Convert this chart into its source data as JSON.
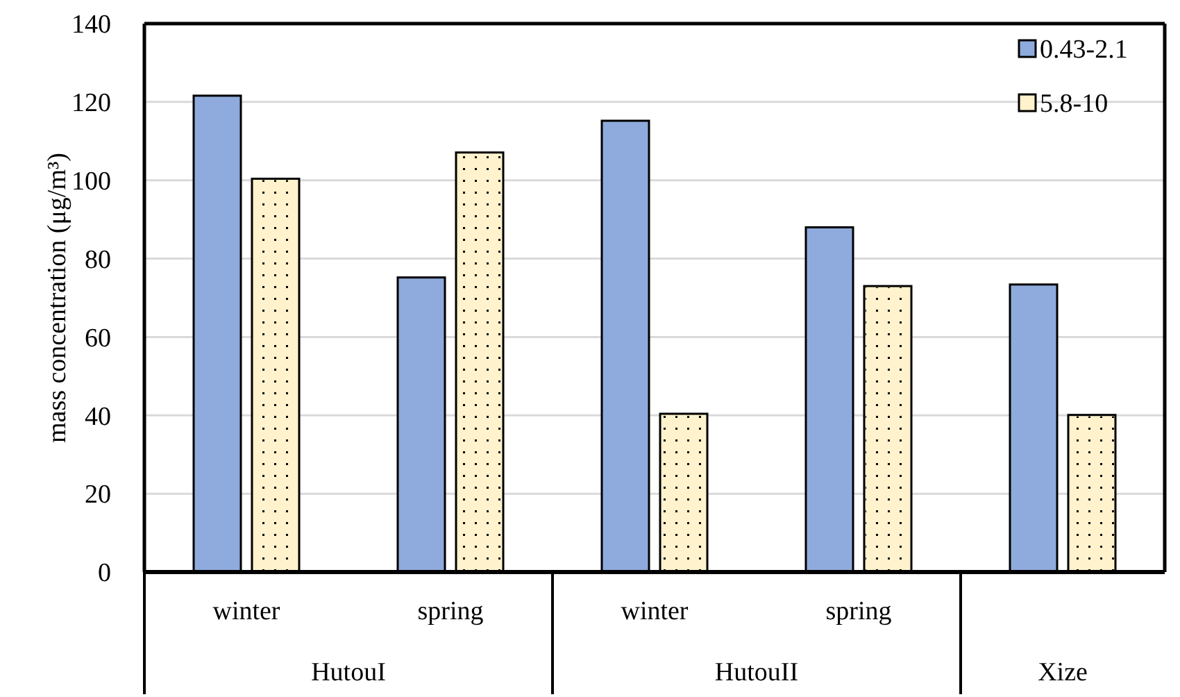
{
  "chart_data": {
    "type": "bar",
    "ylabel": "mass concentration (μg/m³)",
    "categories": [
      "winter",
      "spring",
      "winter",
      "spring",
      null
    ],
    "series": [
      {
        "name": "0.43-2.1",
        "color": "#8faadc",
        "values": [
          121.6,
          75.2,
          115.2,
          88,
          73.4
        ]
      },
      {
        "name": "5.8-10",
        "color": "#fff2cc",
        "values": [
          100.4,
          107.1,
          40.4,
          73,
          40.1
        ]
      }
    ],
    "annotations": [
      "HutouI",
      "HutouII",
      "Xize"
    ],
    "ylim": [
      0,
      140
    ],
    "yticks": [
      0,
      20,
      40,
      60,
      80,
      100,
      120,
      140
    ],
    "grid": "y",
    "legend": "top right"
  }
}
